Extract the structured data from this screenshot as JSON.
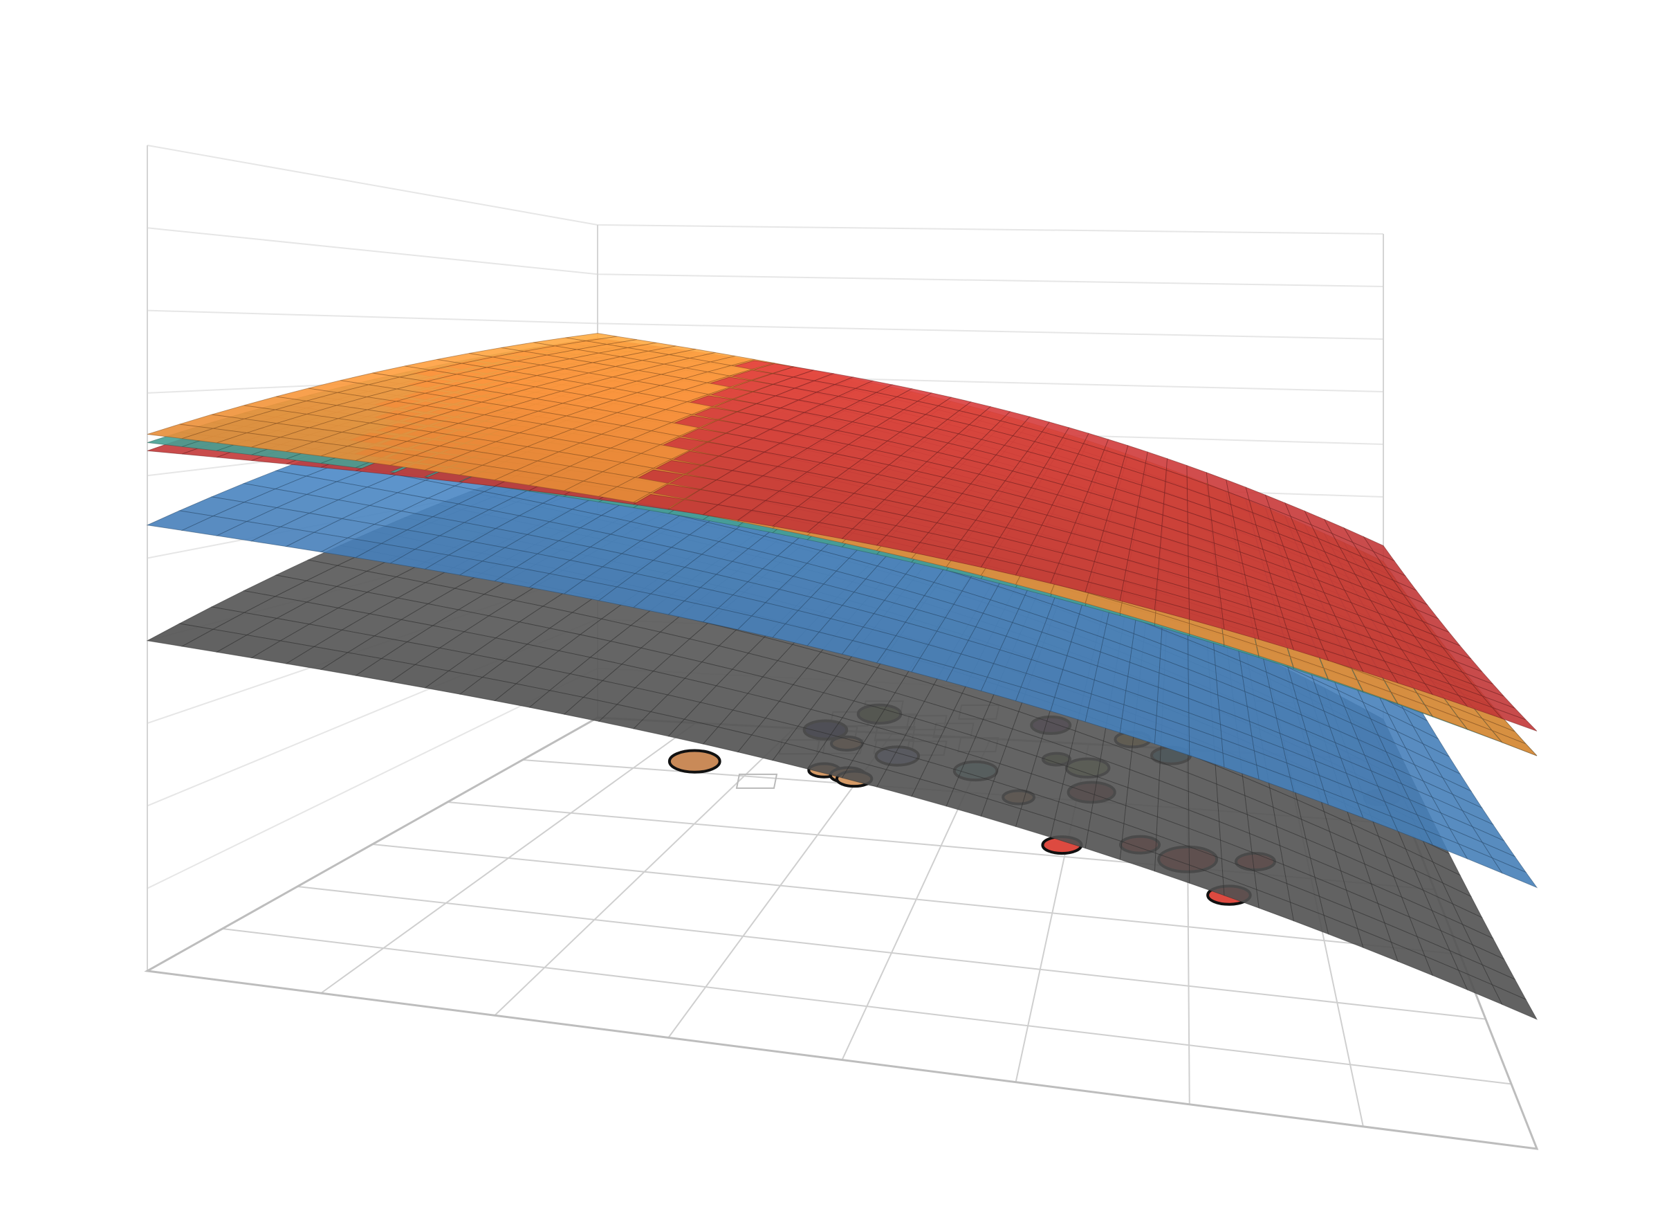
{
  "chart_data": {
    "type": "surface3d",
    "title": "",
    "xlabel": "",
    "ylabel": "",
    "zlabel": "",
    "grid": true,
    "legend": "none",
    "surfaces": [
      {
        "color": "#555555",
        "z_corners": {
          "x0y0": 0.4,
          "x1y0": 0.18,
          "x0y1": 0.55,
          "x1y1": 0.1
        }
      },
      {
        "color": "#4a86c2",
        "z_corners": {
          "x0y0": 0.54,
          "x1y0": 0.34,
          "x0y1": 0.7,
          "x1y1": 0.24
        }
      },
      {
        "color": "#4aa79a",
        "z_corners": {
          "x0y0": 0.64,
          "x1y0": 0.5,
          "x0y1": 0.77,
          "x1y1": 0.4
        }
      },
      {
        "color": "#f2943a",
        "z_corners": {
          "x0y0": 0.65,
          "x1y0": 0.5,
          "x0y1": 0.78,
          "x1y1": 0.4
        }
      },
      {
        "color": "#cc3a3a",
        "z_corners": {
          "x0y0": 0.63,
          "x1y0": 0.53,
          "x0y1": 0.77,
          "x1y1": 0.43
        }
      }
    ],
    "floor_points": [
      {
        "x": 0.18,
        "y": 0.87,
        "size": 1.3,
        "color": "#c98a58"
      },
      {
        "x": 0.33,
        "y": 0.87,
        "size": 0.8,
        "color": "#d59a66"
      },
      {
        "x": 0.36,
        "y": 0.86,
        "size": 0.9,
        "color": "#d59a66"
      },
      {
        "x": 0.37,
        "y": 0.85,
        "size": 0.9,
        "color": "#d59a66"
      },
      {
        "x": 0.33,
        "y": 0.96,
        "size": 0.8,
        "color": "#d59a66"
      },
      {
        "x": 0.29,
        "y": 1.0,
        "size": 1.1,
        "color": "#2f2f6e"
      },
      {
        "x": 0.34,
        "y": 1.06,
        "size": 1.1,
        "color": "#6a7d3c"
      },
      {
        "x": 0.4,
        "y": 0.93,
        "size": 1.1,
        "color": "#9aa3dd"
      },
      {
        "x": 0.5,
        "y": 0.9,
        "size": 1.1,
        "color": "#88c9cc"
      },
      {
        "x": 0.57,
        "y": 1.05,
        "size": 1.0,
        "color": "#6e3f7a"
      },
      {
        "x": 0.56,
        "y": 0.83,
        "size": 0.8,
        "color": "#d59a66"
      },
      {
        "x": 0.59,
        "y": 0.95,
        "size": 0.7,
        "color": "#6a7d3c"
      },
      {
        "x": 0.63,
        "y": 0.93,
        "size": 1.1,
        "color": "#9fb474"
      },
      {
        "x": 0.64,
        "y": 0.86,
        "size": 1.2,
        "color": "#9c4545"
      },
      {
        "x": 0.68,
        "y": 1.02,
        "size": 0.9,
        "color": "#dfb851"
      },
      {
        "x": 0.73,
        "y": 0.98,
        "size": 1.0,
        "color": "#3b8fae"
      },
      {
        "x": 0.62,
        "y": 0.7,
        "size": 1.0,
        "color": "#dd4a40"
      },
      {
        "x": 0.7,
        "y": 0.72,
        "size": 1.0,
        "color": "#dd4a40"
      },
      {
        "x": 0.75,
        "y": 0.69,
        "size": 1.5,
        "color": "#dd4a40"
      },
      {
        "x": 0.82,
        "y": 0.7,
        "size": 1.0,
        "color": "#dd4a40"
      },
      {
        "x": 0.79,
        "y": 0.6,
        "size": 1.1,
        "color": "#dd4a40"
      },
      {
        "x": 0.98,
        "y": 0.9,
        "size": 0.9,
        "color": "#5a2e2e"
      }
    ],
    "floor_squares": [
      {
        "x": 0.27,
        "y": 0.82
      },
      {
        "x": 0.28,
        "y": 0.94
      },
      {
        "x": 0.31,
        "y": 0.99
      },
      {
        "x": 0.31,
        "y": 1.04
      },
      {
        "x": 0.33,
        "y": 0.95
      },
      {
        "x": 0.34,
        "y": 1.08
      },
      {
        "x": 0.37,
        "y": 1.04
      },
      {
        "x": 0.38,
        "y": 1.0
      },
      {
        "x": 0.39,
        "y": 0.96
      },
      {
        "x": 0.41,
        "y": 1.04
      },
      {
        "x": 0.43,
        "y": 0.96
      },
      {
        "x": 0.45,
        "y": 1.02
      },
      {
        "x": 0.47,
        "y": 1.08
      },
      {
        "x": 0.49,
        "y": 0.98
      }
    ]
  }
}
